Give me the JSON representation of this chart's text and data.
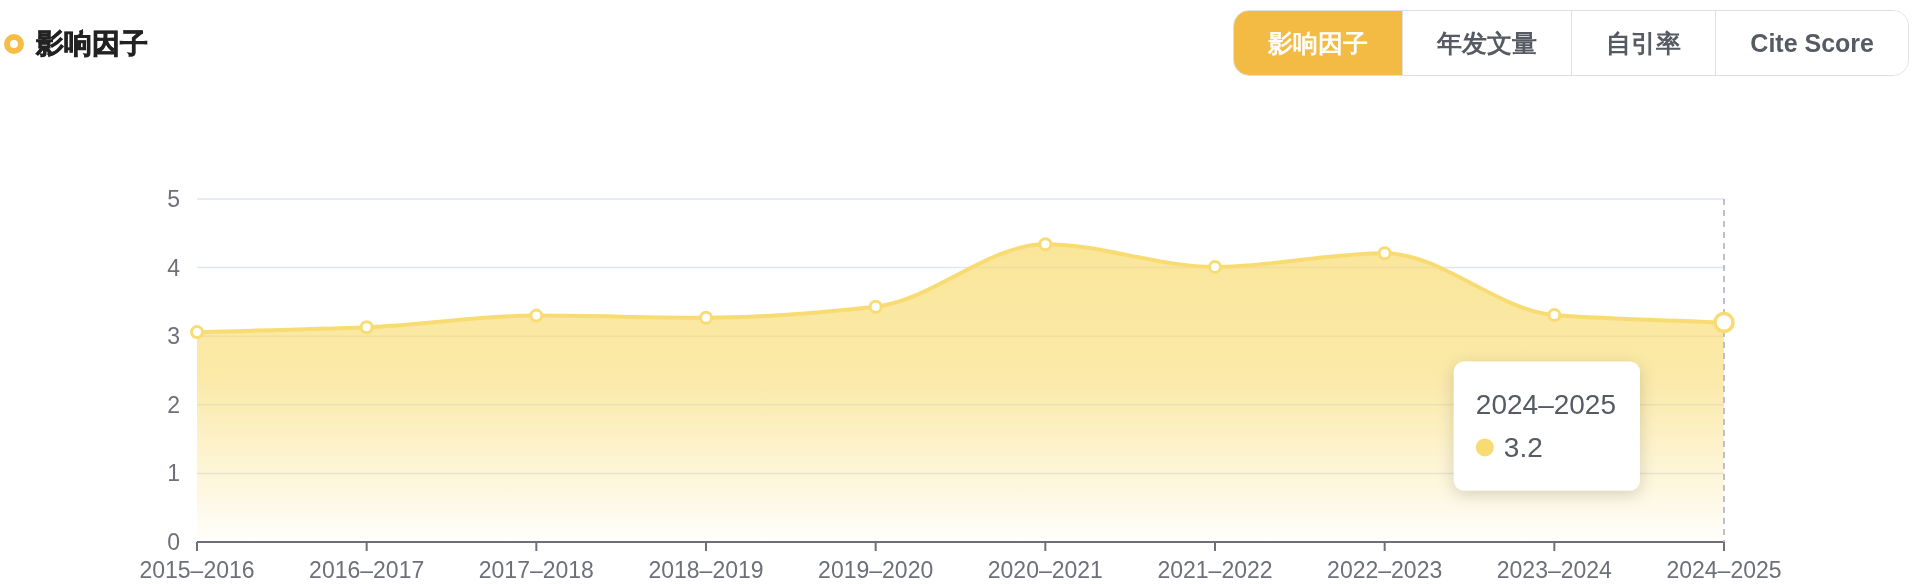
{
  "chart_data": {
    "type": "area",
    "title": "影响因子",
    "categories": [
      "2015–2016",
      "2016–2017",
      "2017–2018",
      "2018–2019",
      "2019–2020",
      "2020–2021",
      "2021–2022",
      "2022–2023",
      "2023–2024",
      "2024–2025"
    ],
    "series": [
      {
        "color": "#f8dc73",
        "values": [
          3.06,
          3.13,
          3.3,
          3.27,
          3.43,
          4.34,
          4.01,
          4.21,
          3.31,
          3.2
        ]
      }
    ],
    "ylim": [
      0,
      5
    ],
    "yticks": [
      0,
      1,
      2,
      3,
      4,
      5
    ],
    "grid": "y",
    "marker": "circle",
    "line_style": "solid",
    "ref_lines": [
      {
        "axis": "x",
        "value": "2024–2025",
        "color": "#b6bac6",
        "line_style": "dashed"
      }
    ],
    "annotations": [
      "影响因子",
      "年发文量",
      "自引率",
      "Cite Score",
      "3.2"
    ]
  }
}
